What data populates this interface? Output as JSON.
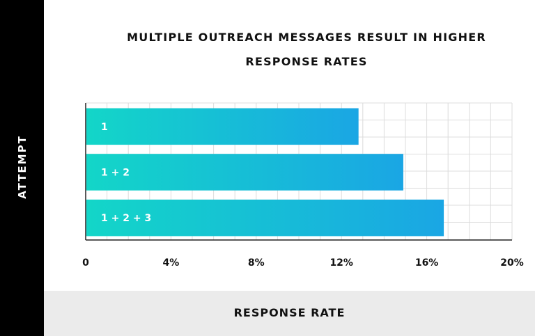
{
  "chart_data": {
    "type": "bar",
    "orientation": "horizontal",
    "title_lines": [
      "MULTIPLE OUTREACH MESSAGES RESULT IN HIGHER",
      "RESPONSE RATES"
    ],
    "xlabel": "RESPONSE RATE",
    "ylabel": "ATTEMPT",
    "categories": [
      "1",
      "1 + 2",
      "1 + 2 + 3"
    ],
    "values": [
      12.8,
      14.9,
      16.8
    ],
    "xlim": [
      0,
      20
    ],
    "xticks": [
      0,
      4,
      8,
      12,
      16,
      20
    ],
    "xtick_labels": [
      "0",
      "4%",
      "8%",
      "12%",
      "16%",
      "20%"
    ],
    "grid": true,
    "colors": {
      "bar_start": "#13d6c8",
      "bar_end": "#1aa6e4",
      "side_band": "#000000",
      "bottom_band": "#ebebeb"
    }
  }
}
